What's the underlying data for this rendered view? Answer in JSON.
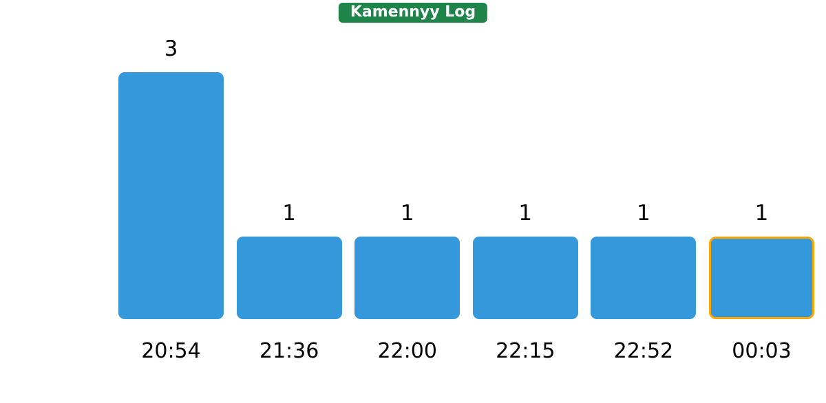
{
  "chart_data": {
    "type": "bar",
    "title": "Kamennyy Log",
    "categories": [
      "20:54",
      "21:36",
      "22:00",
      "22:15",
      "22:52",
      "00:03"
    ],
    "values": [
      3,
      1,
      1,
      1,
      1,
      1
    ],
    "highlighted_index": 5,
    "ylim": [
      0,
      3
    ],
    "grid": false,
    "axes_visible": false,
    "legend": null,
    "colors": {
      "bar_fill": "#3498db",
      "highlight_border": "#FFA500",
      "title_badge_background": "#1e8449",
      "title_badge_text": "#ffffff",
      "label_text": "#000000"
    }
  }
}
